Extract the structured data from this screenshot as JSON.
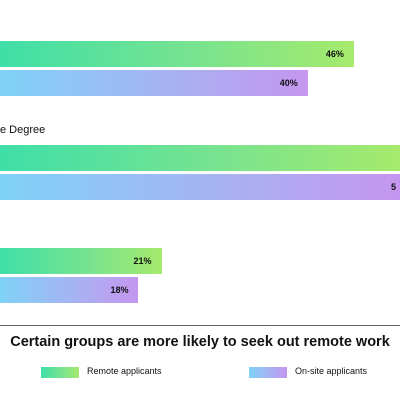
{
  "chart_data": {
    "type": "bar",
    "orientation": "horizontal",
    "title": "Certain groups are more likely to seek out remote work",
    "categories": [
      "",
      "e Degree",
      ""
    ],
    "series": [
      {
        "name": "Remote applicants",
        "values": [
          46,
          52,
          21
        ],
        "labels": [
          "46%",
          "",
          "21%"
        ],
        "color": "#78e38f"
      },
      {
        "name": "On-site applicants",
        "values": [
          40,
          52,
          18
        ],
        "labels": [
          "40%",
          "5",
          "18%"
        ],
        "color": "#a7b2f2"
      }
    ],
    "xlim": [
      0,
      52
    ],
    "legend_position": "bottom",
    "grid": false
  }
}
